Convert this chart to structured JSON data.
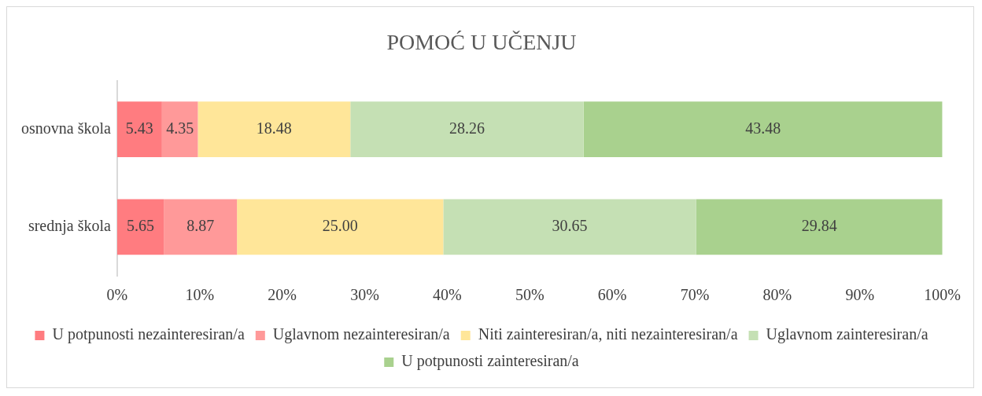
{
  "chart_data": {
    "type": "bar",
    "title": "POMOĆ U UČENJU",
    "orientation": "horizontal",
    "stacked": true,
    "categories": [
      "osnovna škola",
      "srednja škola"
    ],
    "series": [
      {
        "name": "U potpunosti nezainteresiran/a",
        "color": "#ff7c80",
        "values": [
          5.43,
          5.65
        ],
        "value_labels": [
          "5.43",
          "5.65"
        ]
      },
      {
        "name": "Uglavnom nezainteresiran/a",
        "color": "#ff9999",
        "values": [
          4.35,
          8.87
        ],
        "value_labels": [
          "4.35",
          "8.87"
        ]
      },
      {
        "name": "Niti zainteresiran/a, niti nezainteresiran/a",
        "color": "#ffe699",
        "values": [
          18.48,
          25
        ],
        "value_labels": [
          "18.48",
          "25.00"
        ]
      },
      {
        "name": "Uglavnom zainteresiran/a",
        "color": "#c5e0b4",
        "values": [
          28.26,
          30.65
        ],
        "value_labels": [
          "28.26",
          "30.65"
        ]
      },
      {
        "name": "U potpunosti zainteresiran/a",
        "color": "#a9d18e",
        "values": [
          43.48,
          29.84
        ],
        "value_labels": [
          "43.48",
          "29.84"
        ]
      }
    ],
    "xlim": [
      0,
      100
    ],
    "xticks": [
      {
        "value": 0,
        "label": "0%"
      },
      {
        "value": 10,
        "label": "10%"
      },
      {
        "value": 20,
        "label": "20%"
      },
      {
        "value": 30,
        "label": "30%"
      },
      {
        "value": 40,
        "label": "40%"
      },
      {
        "value": 50,
        "label": "50%"
      },
      {
        "value": 60,
        "label": "60%"
      },
      {
        "value": 70,
        "label": "70%"
      },
      {
        "value": 80,
        "label": "80%"
      },
      {
        "value": 90,
        "label": "90%"
      },
      {
        "value": 100,
        "label": "100%"
      }
    ],
    "grid": false,
    "legend": "bottom"
  }
}
